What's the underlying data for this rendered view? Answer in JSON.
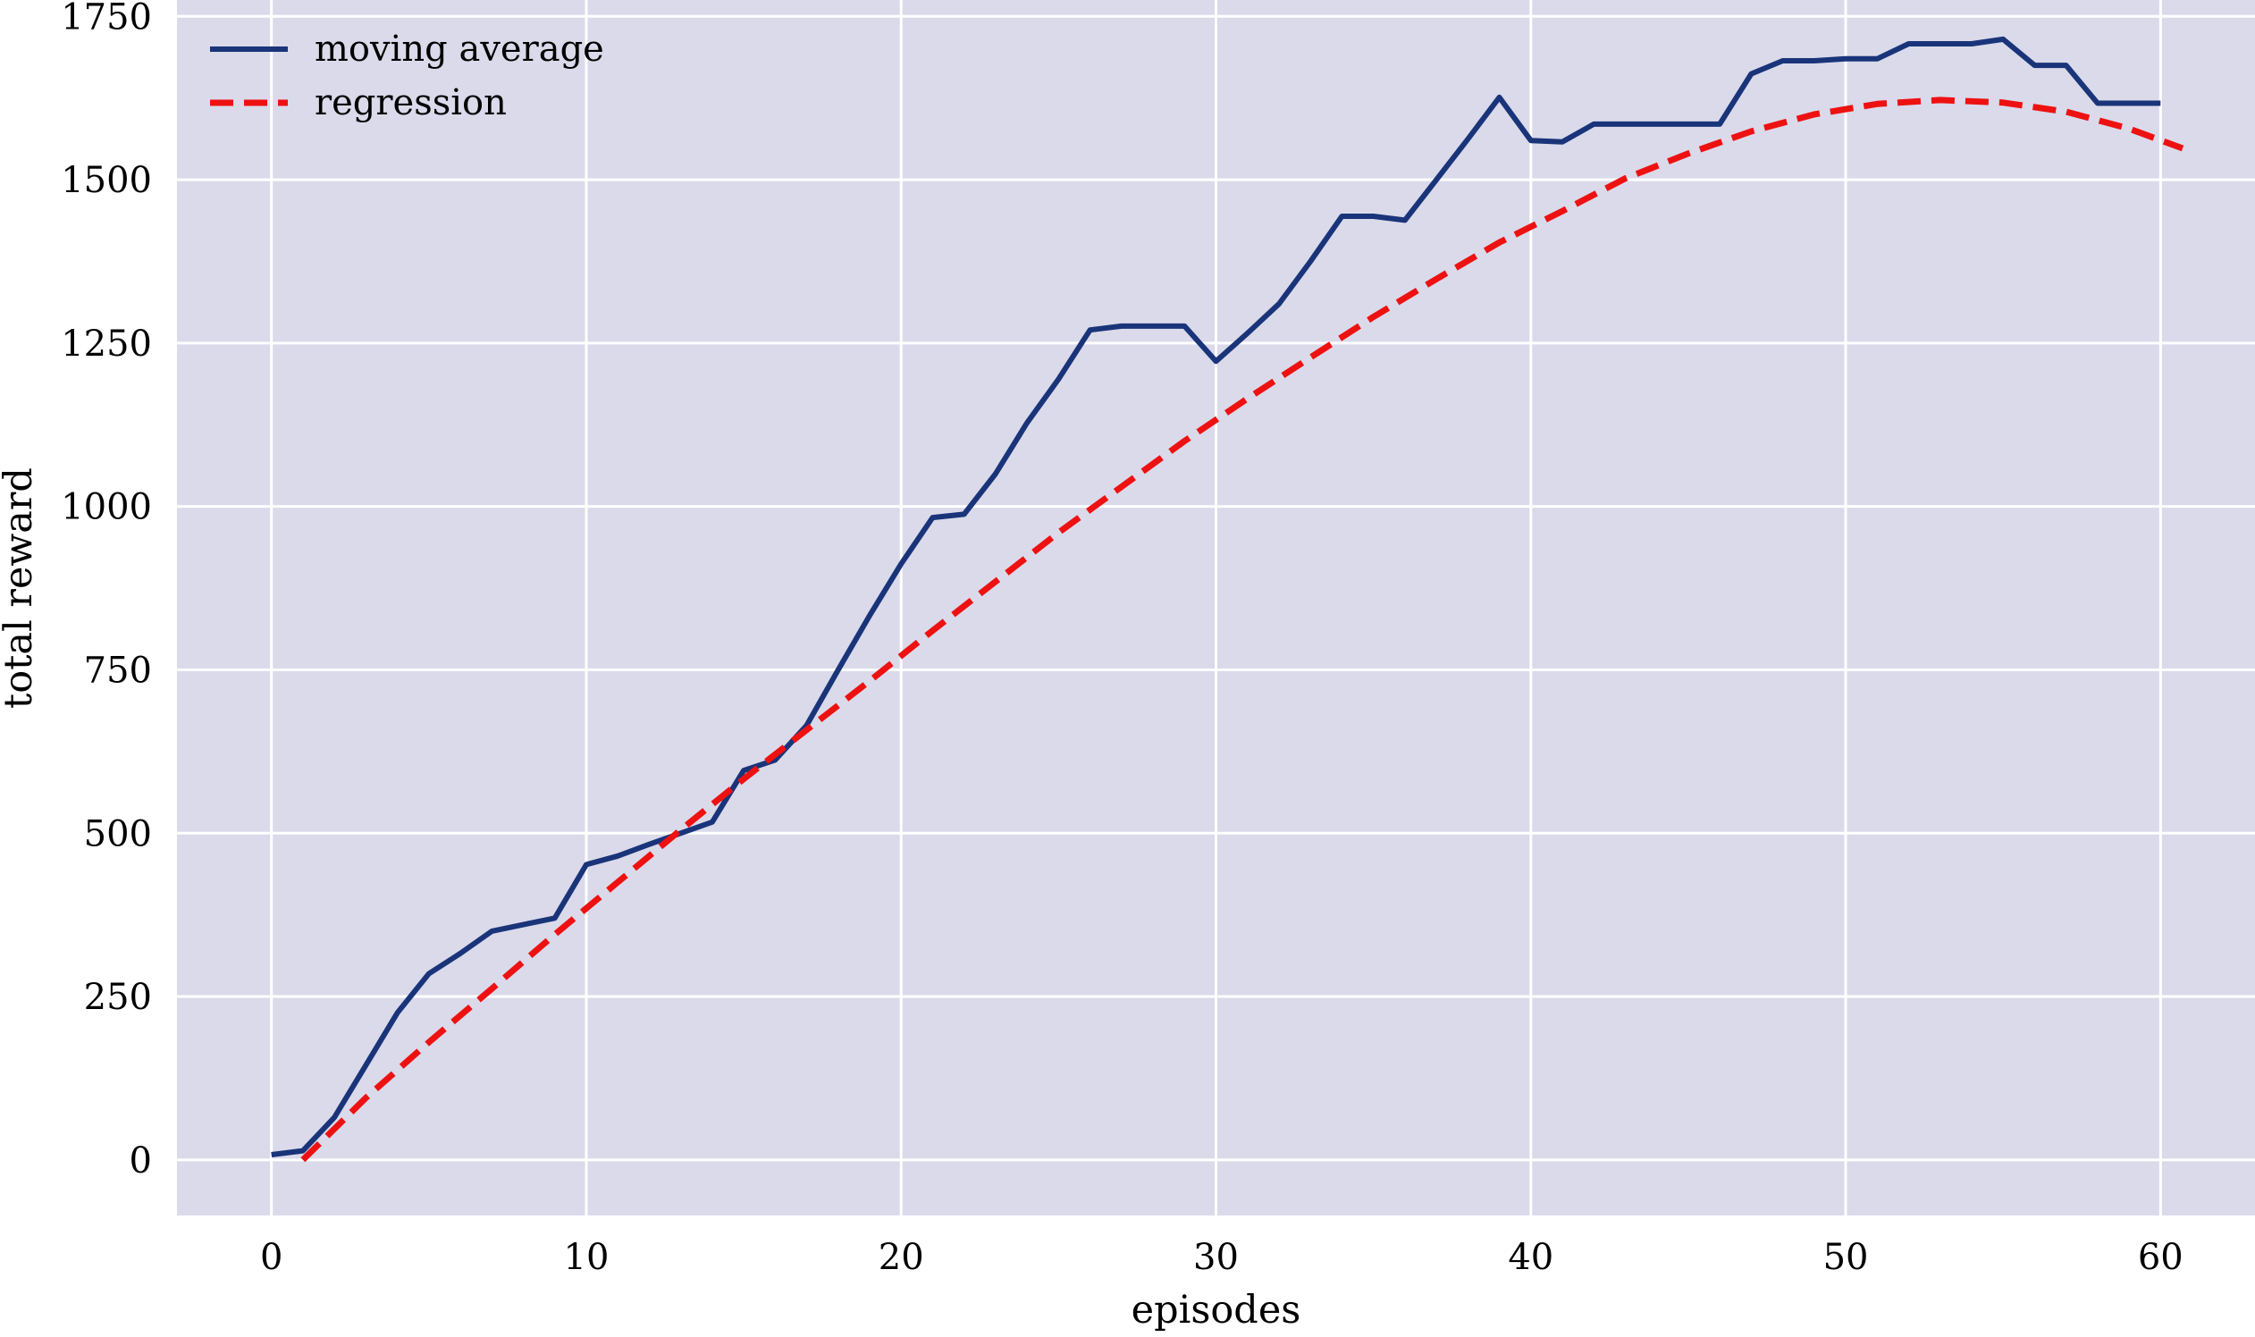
{
  "chart_data": {
    "type": "line",
    "xlabel": "episodes",
    "ylabel": "total reward",
    "xlim": [
      -3,
      63
    ],
    "ylim": [
      -85,
      1775
    ],
    "xticks": [
      0,
      10,
      20,
      30,
      40,
      50,
      60
    ],
    "yticks": [
      0,
      250,
      500,
      750,
      1000,
      1250,
      1500,
      1750
    ],
    "grid": true,
    "legend_position": "top-left",
    "background_color": "#dadaea",
    "grid_color": "#ffffff",
    "series": [
      {
        "name": "moving average",
        "style": "solid",
        "color": "#1a347a",
        "x": [
          0,
          1,
          2,
          3,
          4,
          5,
          6,
          7,
          8,
          9,
          10,
          11,
          12,
          13,
          14,
          15,
          16,
          17,
          18,
          19,
          20,
          21,
          22,
          23,
          24,
          25,
          26,
          27,
          28,
          29,
          30,
          31,
          32,
          33,
          34,
          35,
          36,
          37,
          38,
          39,
          40,
          41,
          42,
          43,
          44,
          45,
          46,
          47,
          48,
          49,
          50,
          51,
          52,
          53,
          54,
          55,
          56,
          57,
          58,
          59,
          60
        ],
        "y": [
          8,
          14,
          65,
          145,
          225,
          285,
          316,
          350,
          360,
          370,
          452,
          465,
          483,
          500,
          517,
          596,
          612,
          665,
          750,
          833,
          912,
          983,
          988,
          1050,
          1128,
          1195,
          1270,
          1276,
          1276,
          1276,
          1222,
          1265,
          1310,
          1375,
          1444,
          1444,
          1438,
          1500,
          1562,
          1626,
          1560,
          1558,
          1585,
          1585,
          1585,
          1585,
          1585,
          1662,
          1682,
          1682,
          1685,
          1685,
          1708,
          1708,
          1708,
          1715,
          1675,
          1675,
          1617,
          1617,
          1617
        ]
      },
      {
        "name": "regression",
        "style": "dashed",
        "color": "#ee1111",
        "x": [
          1,
          3,
          5,
          7,
          9,
          11,
          13,
          15,
          17,
          19,
          21,
          23,
          25,
          27,
          29,
          31,
          33,
          35,
          37,
          39,
          41,
          43,
          45,
          47,
          49,
          51,
          53,
          55,
          57,
          59,
          60.7
        ],
        "y": [
          0,
          95,
          180,
          262,
          345,
          425,
          505,
          583,
          658,
          733,
          810,
          885,
          960,
          1030,
          1100,
          1165,
          1228,
          1290,
          1348,
          1404,
          1452,
          1502,
          1540,
          1574,
          1600,
          1616,
          1622,
          1618,
          1604,
          1578,
          1548
        ]
      }
    ]
  }
}
